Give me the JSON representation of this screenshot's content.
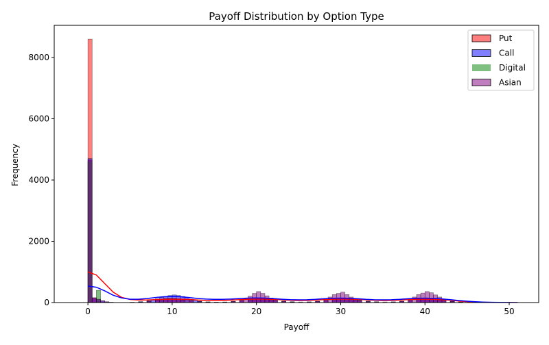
{
  "chart_data": {
    "type": "histogram",
    "title": "Payoff Distribution by Option Type",
    "xlabel": "Payoff",
    "ylabel": "Frequency",
    "xlim": [
      -4,
      53.5
    ],
    "ylim": [
      0,
      9050
    ],
    "x_ticks": [
      0,
      10,
      20,
      30,
      40,
      50
    ],
    "y_ticks": [
      0,
      2000,
      4000,
      6000,
      8000
    ],
    "legend_position": "top-right",
    "bin_width": 0.5,
    "series": [
      {
        "name": "Put",
        "color": "#ff0000",
        "bins": [
          [
            0,
            8600
          ],
          [
            0.5,
            150
          ],
          [
            1,
            40
          ],
          [
            1.5,
            12
          ],
          [
            2,
            5
          ],
          [
            4,
            5
          ],
          [
            5,
            10
          ],
          [
            6,
            25
          ],
          [
            7,
            45
          ],
          [
            8,
            75
          ],
          [
            8.5,
            95
          ],
          [
            9,
            110
          ],
          [
            9.5,
            130
          ],
          [
            10,
            135
          ],
          [
            10.5,
            125
          ],
          [
            11,
            110
          ],
          [
            11.5,
            90
          ],
          [
            12,
            65
          ],
          [
            13,
            40
          ],
          [
            14,
            25
          ],
          [
            15,
            15
          ],
          [
            16,
            20
          ],
          [
            17,
            40
          ],
          [
            18,
            70
          ],
          [
            19,
            100
          ],
          [
            19.5,
            115
          ],
          [
            20,
            125
          ],
          [
            20.5,
            125
          ],
          [
            21,
            115
          ],
          [
            21.5,
            100
          ],
          [
            22,
            80
          ],
          [
            23,
            50
          ],
          [
            24,
            30
          ],
          [
            25,
            20
          ],
          [
            26,
            25
          ],
          [
            27,
            45
          ],
          [
            28,
            70
          ],
          [
            29,
            100
          ],
          [
            29.5,
            115
          ],
          [
            30,
            125
          ],
          [
            30.5,
            125
          ],
          [
            31,
            115
          ],
          [
            31.5,
            100
          ],
          [
            32,
            80
          ],
          [
            33,
            50
          ],
          [
            34,
            30
          ],
          [
            35,
            20
          ],
          [
            36,
            25
          ],
          [
            37,
            45
          ],
          [
            38,
            75
          ],
          [
            39,
            100
          ],
          [
            39.5,
            115
          ],
          [
            40,
            125
          ],
          [
            40.5,
            120
          ],
          [
            41,
            110
          ],
          [
            41.5,
            90
          ],
          [
            42,
            75
          ],
          [
            43,
            45
          ],
          [
            44,
            25
          ],
          [
            45,
            12
          ],
          [
            46,
            6
          ]
        ],
        "kde": [
          [
            0,
            1000
          ],
          [
            1,
            900
          ],
          [
            2,
            620
          ],
          [
            3,
            340
          ],
          [
            4,
            170
          ],
          [
            5,
            100
          ],
          [
            6,
            85
          ],
          [
            7,
            85
          ],
          [
            8,
            95
          ],
          [
            9,
            105
          ],
          [
            10,
            110
          ],
          [
            11,
            110
          ],
          [
            12,
            100
          ],
          [
            13,
            85
          ],
          [
            14,
            70
          ],
          [
            15,
            65
          ],
          [
            16,
            70
          ],
          [
            17,
            80
          ],
          [
            18,
            95
          ],
          [
            19,
            110
          ],
          [
            20,
            115
          ],
          [
            21,
            115
          ],
          [
            22,
            105
          ],
          [
            23,
            90
          ],
          [
            24,
            75
          ],
          [
            25,
            68
          ],
          [
            26,
            70
          ],
          [
            27,
            80
          ],
          [
            28,
            95
          ],
          [
            29,
            110
          ],
          [
            30,
            115
          ],
          [
            31,
            115
          ],
          [
            32,
            105
          ],
          [
            33,
            90
          ],
          [
            34,
            75
          ],
          [
            35,
            68
          ],
          [
            36,
            70
          ],
          [
            37,
            80
          ],
          [
            38,
            95
          ],
          [
            39,
            110
          ],
          [
            40,
            112
          ],
          [
            41,
            108
          ],
          [
            42,
            95
          ],
          [
            43,
            75
          ],
          [
            44,
            50
          ],
          [
            45,
            30
          ],
          [
            46,
            15
          ],
          [
            48,
            6
          ],
          [
            50,
            2
          ],
          [
            51,
            0
          ]
        ]
      },
      {
        "name": "Call",
        "color": "#0000ff",
        "bins": [
          [
            0,
            4700
          ],
          [
            0.5,
            130
          ],
          [
            1,
            95
          ],
          [
            1.5,
            55
          ],
          [
            2,
            25
          ],
          [
            2.5,
            10
          ],
          [
            5,
            10
          ],
          [
            6,
            30
          ],
          [
            7,
            60
          ],
          [
            7.5,
            90
          ],
          [
            8,
            125
          ],
          [
            8.5,
            165
          ],
          [
            9,
            200
          ],
          [
            9.5,
            230
          ],
          [
            10,
            250
          ],
          [
            10.5,
            230
          ],
          [
            11,
            200
          ],
          [
            11.5,
            160
          ],
          [
            12,
            110
          ],
          [
            12.5,
            75
          ],
          [
            13,
            45
          ],
          [
            14,
            20
          ],
          [
            15,
            10
          ],
          [
            16,
            15
          ],
          [
            17,
            30
          ],
          [
            18,
            60
          ],
          [
            19,
            90
          ],
          [
            19.5,
            105
          ],
          [
            20,
            110
          ],
          [
            20.5,
            110
          ],
          [
            21,
            100
          ],
          [
            21.5,
            85
          ],
          [
            22,
            70
          ],
          [
            23,
            40
          ],
          [
            24,
            20
          ],
          [
            26,
            20
          ],
          [
            27,
            40
          ],
          [
            28,
            70
          ],
          [
            29,
            95
          ],
          [
            29.5,
            105
          ],
          [
            30,
            110
          ],
          [
            30.5,
            110
          ],
          [
            31,
            100
          ],
          [
            31.5,
            85
          ],
          [
            32,
            70
          ],
          [
            33,
            40
          ],
          [
            34,
            20
          ],
          [
            36,
            20
          ],
          [
            37,
            40
          ],
          [
            38,
            70
          ],
          [
            39,
            95
          ],
          [
            39.5,
            105
          ],
          [
            40,
            110
          ],
          [
            40.5,
            105
          ],
          [
            41,
            95
          ],
          [
            41.5,
            80
          ],
          [
            42,
            60
          ],
          [
            43,
            35
          ],
          [
            44,
            15
          ]
        ],
        "kde": [
          [
            0,
            540
          ],
          [
            1,
            500
          ],
          [
            2,
            380
          ],
          [
            3,
            240
          ],
          [
            4,
            150
          ],
          [
            5,
            110
          ],
          [
            6,
            110
          ],
          [
            7,
            130
          ],
          [
            8,
            165
          ],
          [
            9,
            190
          ],
          [
            10,
            200
          ],
          [
            11,
            190
          ],
          [
            12,
            165
          ],
          [
            13,
            135
          ],
          [
            14,
            115
          ],
          [
            15,
            105
          ],
          [
            16,
            105
          ],
          [
            17,
            115
          ],
          [
            18,
            130
          ],
          [
            19,
            145
          ],
          [
            20,
            150
          ],
          [
            21,
            145
          ],
          [
            22,
            130
          ],
          [
            23,
            110
          ],
          [
            24,
            95
          ],
          [
            25,
            88
          ],
          [
            26,
            92
          ],
          [
            27,
            105
          ],
          [
            28,
            125
          ],
          [
            29,
            140
          ],
          [
            30,
            145
          ],
          [
            31,
            140
          ],
          [
            32,
            125
          ],
          [
            33,
            105
          ],
          [
            34,
            92
          ],
          [
            35,
            88
          ],
          [
            36,
            92
          ],
          [
            37,
            105
          ],
          [
            38,
            125
          ],
          [
            39,
            140
          ],
          [
            40,
            145
          ],
          [
            41,
            138
          ],
          [
            42,
            120
          ],
          [
            43,
            95
          ],
          [
            44,
            68
          ],
          [
            45,
            45
          ],
          [
            46,
            28
          ],
          [
            47,
            15
          ],
          [
            48,
            8
          ],
          [
            50,
            3
          ],
          [
            51,
            1
          ]
        ]
      },
      {
        "name": "Digital",
        "color": "#008000",
        "bins": [
          [
            0,
            4600
          ],
          [
            0.5,
            10
          ],
          [
            1,
            400
          ]
        ],
        "kde": []
      },
      {
        "name": "Asian",
        "color": "#800080",
        "bins": [
          [
            0,
            4650
          ],
          [
            0.5,
            160
          ],
          [
            1,
            110
          ],
          [
            1.5,
            60
          ],
          [
            2,
            25
          ],
          [
            2.5,
            10
          ],
          [
            6,
            15
          ],
          [
            7,
            40
          ],
          [
            8,
            80
          ],
          [
            8.5,
            110
          ],
          [
            9,
            130
          ],
          [
            9.5,
            135
          ],
          [
            10,
            130
          ],
          [
            10.5,
            110
          ],
          [
            11,
            85
          ],
          [
            12,
            55
          ],
          [
            13,
            30
          ],
          [
            14,
            15
          ],
          [
            17,
            40
          ],
          [
            18,
            90
          ],
          [
            18.5,
            150
          ],
          [
            19,
            210
          ],
          [
            19.5,
            300
          ],
          [
            20,
            360
          ],
          [
            20.5,
            300
          ],
          [
            21,
            220
          ],
          [
            21.5,
            150
          ],
          [
            22,
            90
          ],
          [
            23,
            40
          ],
          [
            24,
            15
          ],
          [
            27,
            40
          ],
          [
            28,
            100
          ],
          [
            28.5,
            180
          ],
          [
            29,
            260
          ],
          [
            29.5,
            300
          ],
          [
            30,
            340
          ],
          [
            30.5,
            260
          ],
          [
            31,
            180
          ],
          [
            31.5,
            100
          ],
          [
            32,
            60
          ],
          [
            33,
            25
          ],
          [
            37,
            40
          ],
          [
            38,
            100
          ],
          [
            38.5,
            180
          ],
          [
            39,
            260
          ],
          [
            39.5,
            310
          ],
          [
            40,
            360
          ],
          [
            40.5,
            320
          ],
          [
            41,
            250
          ],
          [
            41.5,
            180
          ],
          [
            42,
            100
          ],
          [
            43,
            40
          ],
          [
            44,
            15
          ]
        ],
        "kde": []
      }
    ]
  }
}
